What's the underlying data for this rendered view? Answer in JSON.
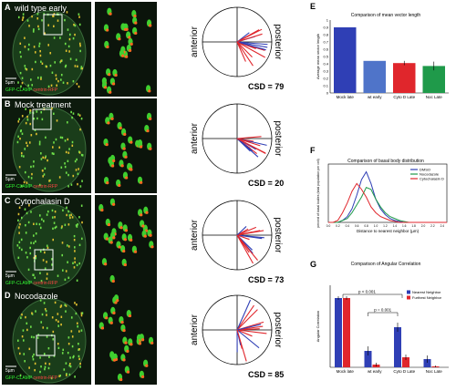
{
  "panels": [
    {
      "letter": "A",
      "label": "wild type early",
      "scale": "5µm",
      "legend": [
        "GFP-CLAMP",
        "centrin-RFP"
      ],
      "posterior_word": "posterior",
      "anterior_word": "anterior",
      "csd": "CSD = 79"
    },
    {
      "letter": "B",
      "label": "Mock treatment",
      "scale": "5µm",
      "legend": [
        "GFP-CLAMP",
        "centrin-RFP"
      ],
      "posterior_word": "posterior",
      "anterior_word": "anterior",
      "csd": "CSD = 20"
    },
    {
      "letter": "C",
      "label": "Cytochalasin D",
      "scale": "5µm",
      "legend": [
        "GFP-CLAMP",
        "centrin-RFP"
      ],
      "posterior_word": "posterior",
      "anterior_word": "anterior",
      "csd": "CSD = 73"
    },
    {
      "letter": "D",
      "label": "Nocodazole",
      "scale": "5µm",
      "legend": [
        "GFP-CLAMP",
        "centrin-RFP"
      ],
      "posterior_word": "posterior",
      "anterior_word": "anterior",
      "csd": "CSD = 85"
    }
  ],
  "colors": {
    "blue": "#2f3fb5",
    "lightblue": "#4f74c9",
    "red": "#e0262c",
    "green": "#1f9a4a",
    "dark_green": "#1f6b2e"
  },
  "chart_data": [
    {
      "panel": "E",
      "type": "bar",
      "title": "Comparison of mean vector length",
      "ylabel": "Average mean vector length",
      "categories": [
        "Mock late",
        "wt early",
        "Cyto D Late",
        "Noc Late"
      ],
      "values": [
        0.9,
        0.44,
        0.41,
        0.37
      ],
      "errors": [
        0.0,
        0.0,
        0.03,
        0.06
      ],
      "colors": [
        "#2f3fb5",
        "#4f74c9",
        "#e0262c",
        "#1f9a4a"
      ],
      "ylim": [
        0,
        1.0
      ],
      "yticks": [
        "0",
        "0.1",
        "0.2",
        "0.3",
        "0.4",
        "0.5",
        "0.6",
        "0.7",
        "0.8",
        "0.9",
        "1"
      ]
    },
    {
      "panel": "F",
      "type": "line",
      "title": "Comparison of basal body distribution",
      "xlabel": "Distance to nearest neighbor (µm)",
      "ylabel": "percent of basal bodies (total population per cell)",
      "x": [
        0,
        0.1,
        0.2,
        0.3,
        0.4,
        0.5,
        0.6,
        0.7,
        0.8,
        0.9,
        1.0,
        1.1,
        1.2,
        1.3,
        1.4,
        1.5,
        1.6,
        1.7,
        1.8,
        1.9,
        2.0,
        2.1,
        2.2,
        2.3,
        2.4,
        2.5
      ],
      "ylim": [
        0,
        0.3
      ],
      "series": [
        {
          "name": "DMSO",
          "color": "#2f3fb5",
          "values": [
            0,
            0,
            0,
            0.01,
            0.03,
            0.07,
            0.14,
            0.22,
            0.26,
            0.2,
            0.12,
            0.07,
            0.04,
            0.02,
            0.01,
            0.005,
            0,
            0,
            0,
            0,
            0,
            0,
            0,
            0,
            0,
            0
          ]
        },
        {
          "name": "Nocodazole",
          "color": "#1f9a4a",
          "values": [
            0,
            0,
            0,
            0.01,
            0.02,
            0.05,
            0.09,
            0.13,
            0.18,
            0.17,
            0.12,
            0.08,
            0.05,
            0.03,
            0.02,
            0.01,
            0.005,
            0,
            0,
            0,
            0,
            0,
            0,
            0,
            0,
            0
          ]
        },
        {
          "name": "Cytochalasin D",
          "color": "#e0262c",
          "values": [
            0,
            0,
            0.01,
            0.05,
            0.1,
            0.16,
            0.2,
            0.17,
            0.13,
            0.08,
            0.05,
            0.03,
            0.02,
            0.01,
            0.005,
            0,
            0,
            0,
            0,
            0,
            0,
            0,
            0,
            0,
            0,
            0
          ]
        }
      ],
      "legend": "top-right"
    },
    {
      "panel": "G",
      "type": "bar",
      "title": "Comparison of Angular Correlation",
      "ylabel": "Angular Correlation",
      "categories": [
        "Mock late",
        "wt early",
        "Cyto D Late",
        "Noc Late"
      ],
      "series": [
        {
          "name": "Nearest Neighbor",
          "color": "#2f3fb5",
          "values": [
            0.76,
            0.18,
            0.44,
            0.09
          ],
          "errors": [
            0.02,
            0.05,
            0.05,
            0.04
          ]
        },
        {
          "name": "Furthest Neighbor",
          "color": "#e0262c",
          "values": [
            0.76,
            0.03,
            0.11,
            0.01
          ],
          "errors": [
            0.02,
            0.02,
            0.03,
            0.01
          ]
        }
      ],
      "ylim": [
        0,
        0.9
      ],
      "annotations": [
        "p < 0.001",
        "p = 0.001"
      ],
      "legend": "top-right"
    }
  ]
}
